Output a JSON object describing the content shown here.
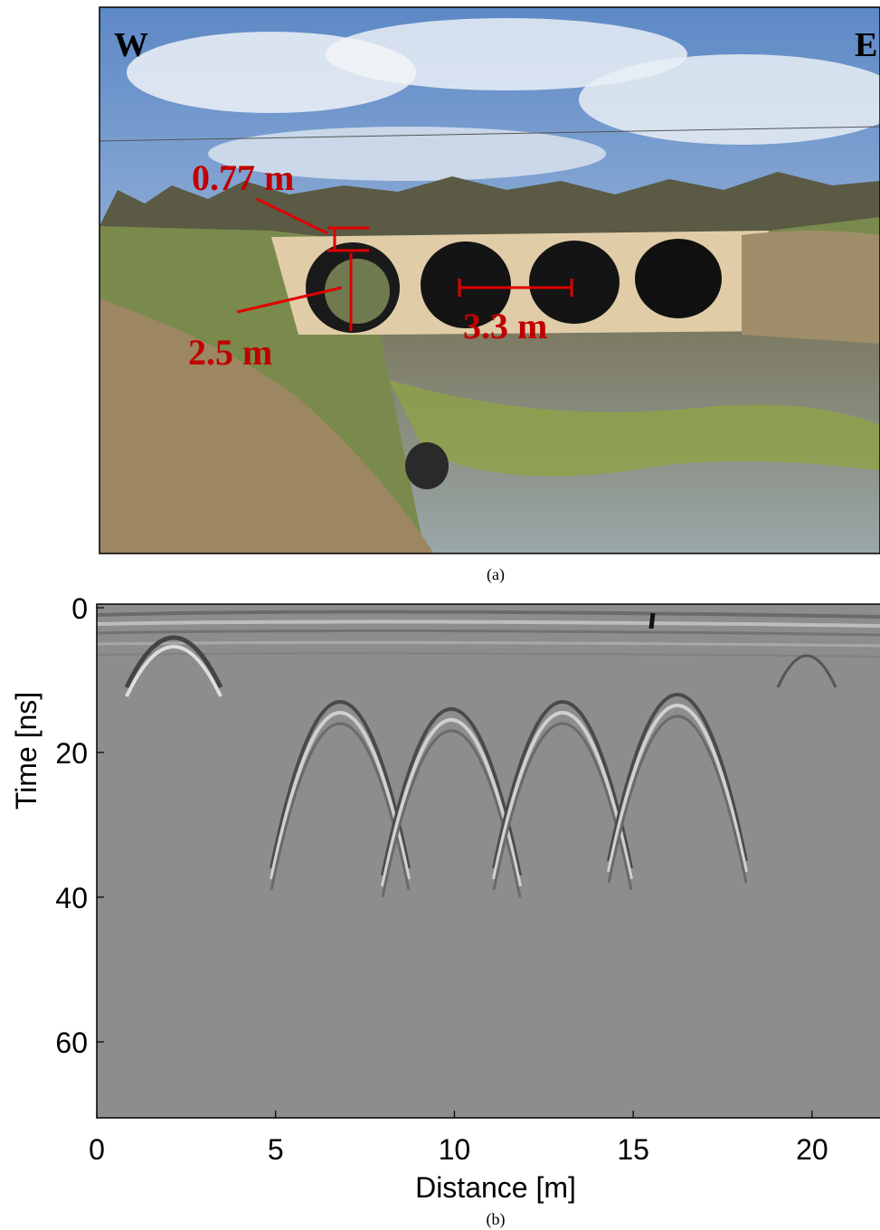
{
  "photo": {
    "labels": {
      "west": "W",
      "east": "E",
      "cover": "0.77 m",
      "diameter": "2.5 m",
      "spacing": "3.3 m"
    },
    "caption": "(a)"
  },
  "chart_data": {
    "type": "radargram",
    "xlabel": "Distance [m]",
    "ylabel": "Time [ns]",
    "caption": "(b)",
    "xlim": [
      0,
      21.9
    ],
    "ylim": [
      -0.5,
      70.5
    ],
    "xticks": [
      0,
      5,
      10,
      15,
      20
    ],
    "yticks": [
      0,
      20,
      40,
      60
    ]
  }
}
